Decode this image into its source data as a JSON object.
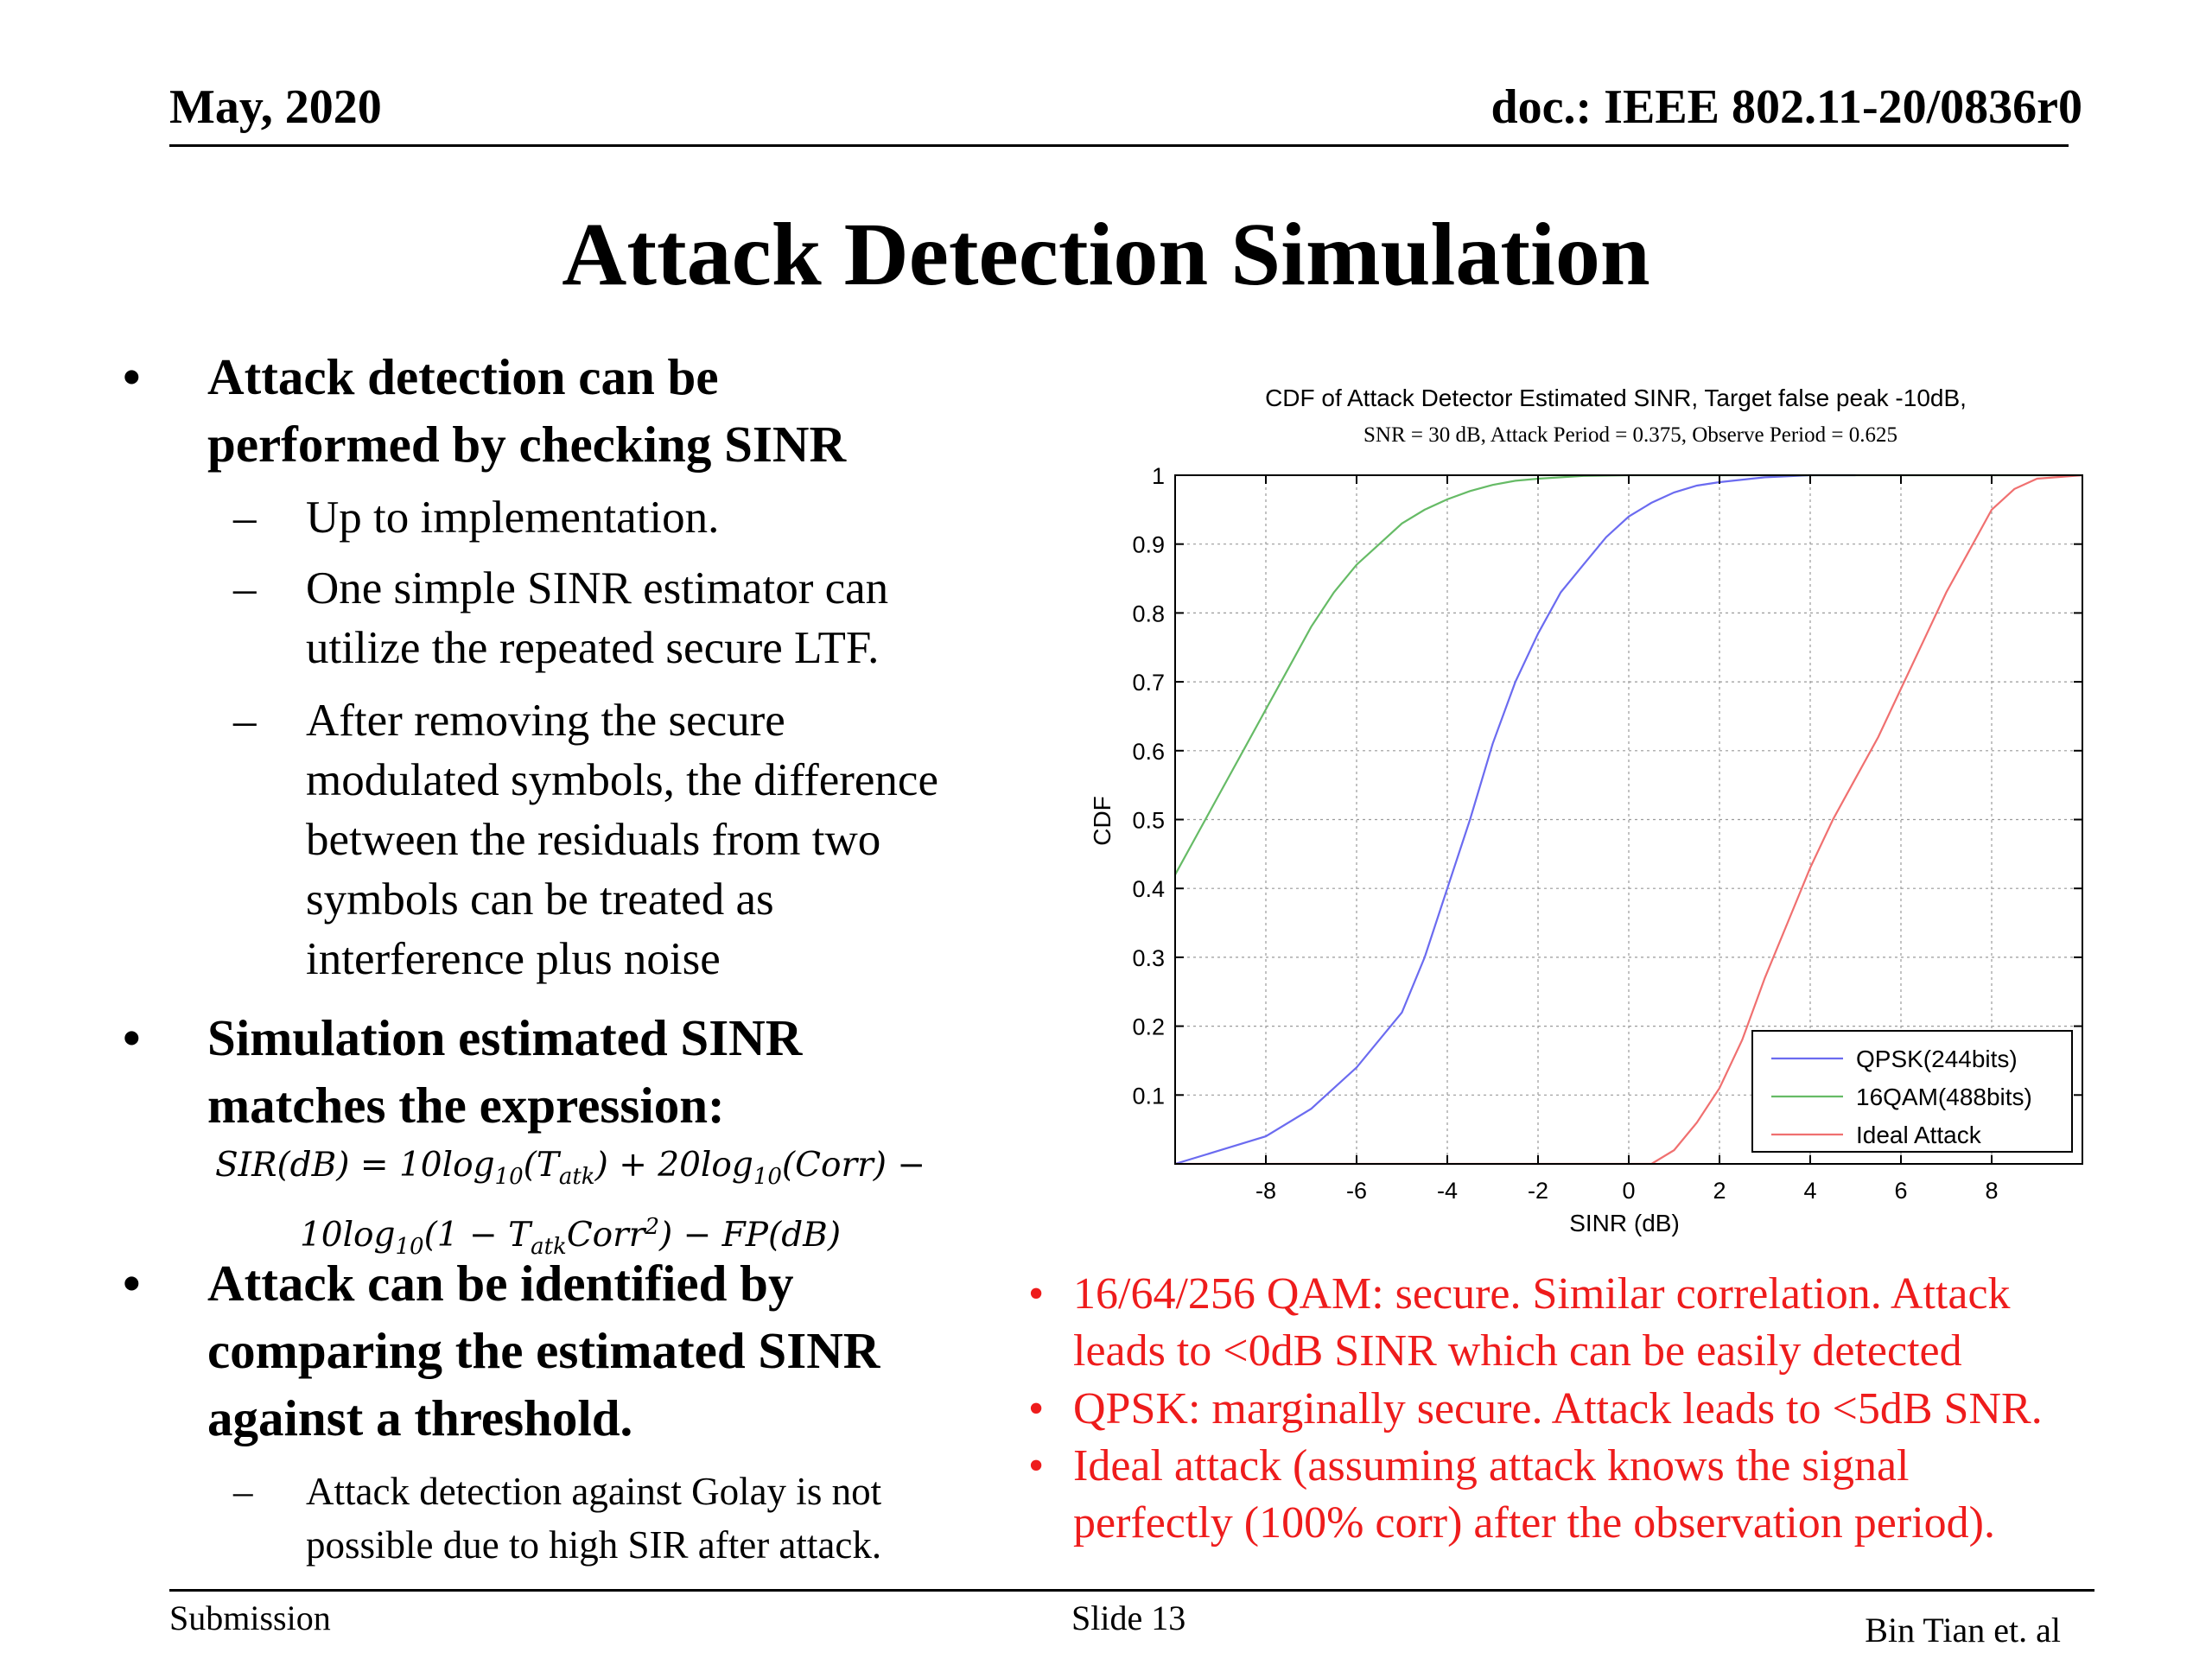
{
  "header": {
    "date": "May, 2020",
    "doc": "doc.: IEEE 802.11-20/0836r0"
  },
  "title": "Attack Detection Simulation",
  "left": {
    "b1_line1": "Attack detection can be",
    "b1_line2": "performed by checking SINR",
    "b1_sub1": "Up to implementation.",
    "b1_sub2_line1": "One simple SINR estimator can",
    "b1_sub2_line2": "utilize the repeated secure LTF.",
    "b1_sub3_line1": "After removing the secure",
    "b1_sub3_line2": "modulated symbols,  the difference",
    "b1_sub3_line3": "between the residuals from two",
    "b1_sub3_line4": "symbols can be treated as",
    "b1_sub3_line5": "interference plus noise",
    "b2_line1": "Simulation estimated SINR",
    "b2_line2": "matches the expression:",
    "b3_line1": "Attack can be identified by",
    "b3_line2": "comparing the estimated SINR",
    "b3_line3": "against a threshold.",
    "b3_sub1_line1": "Attack detection against Golay is not",
    "b3_sub1_line2": "possible due to high SIR after attack.",
    "bullet": "•",
    "dash": "–"
  },
  "notes": [
    {
      "line1": "16/64/256 QAM: secure. Similar correlation. Attack",
      "line2": "leads to <0dB SINR which can be easily detected"
    },
    {
      "line1": "QPSK: marginally secure. Attack leads to <5dB SNR.",
      "line2": ""
    },
    {
      "line1": "Ideal attack (assuming attack knows the signal",
      "line2": "perfectly (100% corr) after the observation period)."
    }
  ],
  "footer": {
    "submission": "Submission",
    "slide": "Slide 13",
    "author": "Bin Tian et. al"
  },
  "chart_data": {
    "type": "line",
    "title": "CDF of Attack Detector Estimated SINR, Target false peak -10dB,",
    "subtitle": "SNR = 30 dB, Attack Period = 0.375, Observe Period = 0.625",
    "xlabel": "SINR (dB)",
    "ylabel": "CDF",
    "xlim": [
      -10,
      10
    ],
    "ylim": [
      0,
      1
    ],
    "x_ticks": [
      -8,
      -6,
      -4,
      -2,
      0,
      2,
      4,
      6,
      8
    ],
    "y_ticks": [
      0.1,
      0.2,
      0.3,
      0.4,
      0.5,
      0.6,
      0.7,
      0.8,
      0.9,
      1
    ],
    "grid": true,
    "legend_position": "bottom-right",
    "series": [
      {
        "name": "QPSK(244bits)",
        "color": "#6b6bf0",
        "x": [
          -10,
          -9,
          -8,
          -7,
          -6,
          -5,
          -4.5,
          -4,
          -3.5,
          -3,
          -2.5,
          -2,
          -1.5,
          -1,
          -0.5,
          0,
          0.5,
          1,
          1.5,
          2,
          3,
          4,
          5
        ],
        "y": [
          0.0,
          0.02,
          0.04,
          0.08,
          0.14,
          0.22,
          0.3,
          0.4,
          0.5,
          0.61,
          0.7,
          0.77,
          0.83,
          0.87,
          0.91,
          0.94,
          0.96,
          0.975,
          0.985,
          0.99,
          0.997,
          1.0,
          1.0
        ]
      },
      {
        "name": "16QAM(488bits)",
        "color": "#66bb66",
        "x": [
          -10,
          -9.5,
          -9,
          -8.5,
          -8,
          -7.5,
          -7,
          -6.5,
          -6,
          -5.5,
          -5,
          -4.5,
          -4,
          -3.5,
          -3,
          -2.5,
          -2,
          -1,
          0,
          10
        ],
        "y": [
          0.42,
          0.48,
          0.54,
          0.6,
          0.66,
          0.72,
          0.78,
          0.83,
          0.87,
          0.9,
          0.93,
          0.95,
          0.965,
          0.977,
          0.986,
          0.992,
          0.995,
          0.999,
          1.0,
          1.0
        ]
      },
      {
        "name": "Ideal Attack",
        "color": "#f07070",
        "x": [
          -10,
          0.5,
          1.0,
          1.5,
          2.0,
          2.5,
          3.0,
          3.5,
          4.0,
          4.5,
          5.0,
          5.5,
          6.0,
          6.5,
          7.0,
          7.5,
          8.0,
          8.5,
          9.0,
          10
        ],
        "y": [
          0.0,
          0.0,
          0.02,
          0.06,
          0.11,
          0.18,
          0.27,
          0.35,
          0.43,
          0.5,
          0.56,
          0.62,
          0.69,
          0.76,
          0.83,
          0.89,
          0.95,
          0.98,
          0.995,
          1.0
        ]
      }
    ]
  }
}
